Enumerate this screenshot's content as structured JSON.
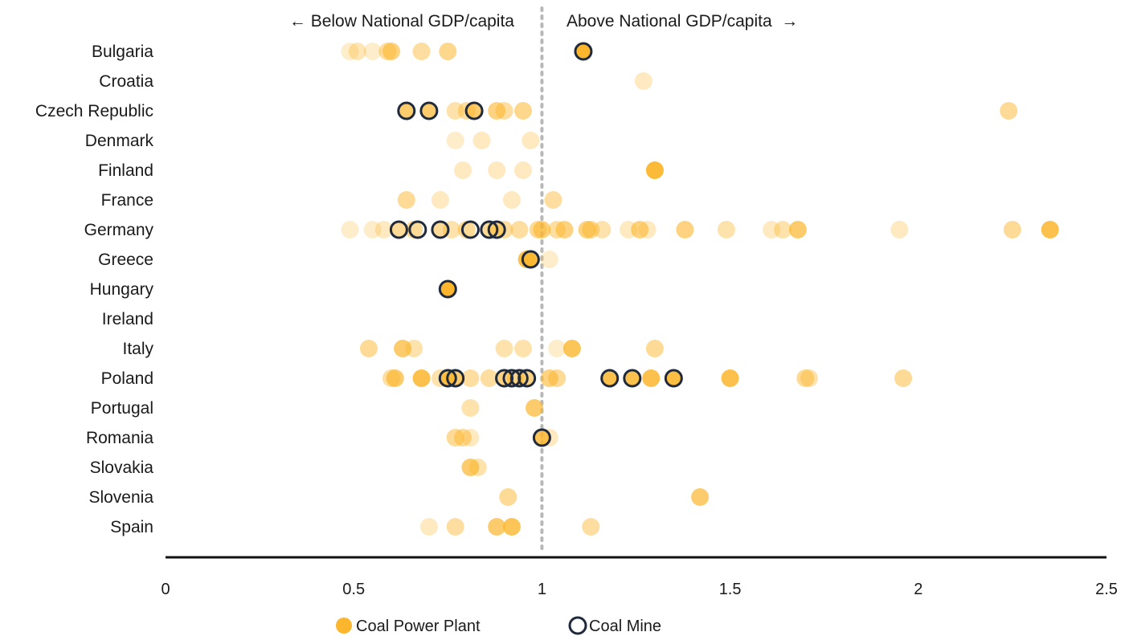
{
  "chart_data": {
    "type": "scatter",
    "title": "",
    "xlabel": "",
    "ylabel": "",
    "xlim": [
      0,
      2.5
    ],
    "x_ticks": [
      "0",
      "0.5",
      "1",
      "1.5",
      "2",
      "2.5"
    ],
    "reference_line_x": 1,
    "annotations": {
      "left": "← Below National GDP/capita",
      "right": "Above National GDP/capita  →"
    },
    "colors": {
      "plant": "#fbb62d",
      "mine_stroke": "#1f2a3c",
      "reference_line": "#b8b8b8",
      "axis": "#111111"
    },
    "legend": {
      "position": "bottom",
      "plant": "Coal Power Plant",
      "mine": "Coal Mine"
    },
    "categories": [
      "Bulgaria",
      "Croatia",
      "Czech Republic",
      "Denmark",
      "Finland",
      "France",
      "Germany",
      "Greece",
      "Hungary",
      "Ireland",
      "Italy",
      "Poland",
      "Portugal",
      "Romania",
      "Slovakia",
      "Slovenia",
      "Spain"
    ],
    "series": [
      {
        "kind": "plant",
        "points": [
          {
            "country": "Bulgaria",
            "x": 0.49,
            "opacity": 0.25
          },
          {
            "country": "Bulgaria",
            "x": 0.51,
            "opacity": 0.35
          },
          {
            "country": "Bulgaria",
            "x": 0.55,
            "opacity": 0.25
          },
          {
            "country": "Bulgaria",
            "x": 0.59,
            "opacity": 0.45
          },
          {
            "country": "Bulgaria",
            "x": 0.6,
            "opacity": 0.6
          },
          {
            "country": "Bulgaria",
            "x": 0.68,
            "opacity": 0.45
          },
          {
            "country": "Bulgaria",
            "x": 0.75,
            "opacity": 0.55
          },
          {
            "country": "Bulgaria",
            "x": 1.11,
            "opacity": 1
          },
          {
            "country": "Croatia",
            "x": 1.27,
            "opacity": 0.3
          },
          {
            "country": "Czech Republic",
            "x": 0.64,
            "opacity": 0.7
          },
          {
            "country": "Czech Republic",
            "x": 0.7,
            "opacity": 0.7
          },
          {
            "country": "Czech Republic",
            "x": 0.77,
            "opacity": 0.4
          },
          {
            "country": "Czech Republic",
            "x": 0.8,
            "opacity": 0.45
          },
          {
            "country": "Czech Republic",
            "x": 0.82,
            "opacity": 0.7
          },
          {
            "country": "Czech Republic",
            "x": 0.88,
            "opacity": 0.6
          },
          {
            "country": "Czech Republic",
            "x": 0.9,
            "opacity": 0.45
          },
          {
            "country": "Czech Republic",
            "x": 0.95,
            "opacity": 0.55
          },
          {
            "country": "Czech Republic",
            "x": 2.24,
            "opacity": 0.5
          },
          {
            "country": "Denmark",
            "x": 0.77,
            "opacity": 0.25
          },
          {
            "country": "Denmark",
            "x": 0.84,
            "opacity": 0.3
          },
          {
            "country": "Denmark",
            "x": 0.97,
            "opacity": 0.3
          },
          {
            "country": "Finland",
            "x": 0.79,
            "opacity": 0.3
          },
          {
            "country": "Finland",
            "x": 0.88,
            "opacity": 0.3
          },
          {
            "country": "Finland",
            "x": 0.95,
            "opacity": 0.3
          },
          {
            "country": "Finland",
            "x": 1.3,
            "opacity": 0.95
          },
          {
            "country": "France",
            "x": 0.64,
            "opacity": 0.5
          },
          {
            "country": "France",
            "x": 0.73,
            "opacity": 0.3
          },
          {
            "country": "France",
            "x": 0.92,
            "opacity": 0.3
          },
          {
            "country": "France",
            "x": 1.03,
            "opacity": 0.45
          },
          {
            "country": "Germany",
            "x": 0.49,
            "opacity": 0.25
          },
          {
            "country": "Germany",
            "x": 0.55,
            "opacity": 0.25
          },
          {
            "country": "Germany",
            "x": 0.58,
            "opacity": 0.3
          },
          {
            "country": "Germany",
            "x": 0.62,
            "opacity": 0.5
          },
          {
            "country": "Germany",
            "x": 0.66,
            "opacity": 0.5
          },
          {
            "country": "Germany",
            "x": 0.73,
            "opacity": 0.5
          },
          {
            "country": "Germany",
            "x": 0.76,
            "opacity": 0.4
          },
          {
            "country": "Germany",
            "x": 0.8,
            "opacity": 0.5
          },
          {
            "country": "Germany",
            "x": 0.86,
            "opacity": 0.5
          },
          {
            "country": "Germany",
            "x": 0.88,
            "opacity": 0.5
          },
          {
            "country": "Germany",
            "x": 0.9,
            "opacity": 0.45
          },
          {
            "country": "Germany",
            "x": 0.94,
            "opacity": 0.45
          },
          {
            "country": "Germany",
            "x": 0.99,
            "opacity": 0.5
          },
          {
            "country": "Germany",
            "x": 1.0,
            "opacity": 0.6
          },
          {
            "country": "Germany",
            "x": 1.04,
            "opacity": 0.45
          },
          {
            "country": "Germany",
            "x": 1.06,
            "opacity": 0.6
          },
          {
            "country": "Germany",
            "x": 1.12,
            "opacity": 0.6
          },
          {
            "country": "Germany",
            "x": 1.13,
            "opacity": 0.5
          },
          {
            "country": "Germany",
            "x": 1.16,
            "opacity": 0.4
          },
          {
            "country": "Germany",
            "x": 1.23,
            "opacity": 0.3
          },
          {
            "country": "Germany",
            "x": 1.26,
            "opacity": 0.6
          },
          {
            "country": "Germany",
            "x": 1.28,
            "opacity": 0.3
          },
          {
            "country": "Germany",
            "x": 1.38,
            "opacity": 0.6
          },
          {
            "country": "Germany",
            "x": 1.49,
            "opacity": 0.4
          },
          {
            "country": "Germany",
            "x": 1.61,
            "opacity": 0.3
          },
          {
            "country": "Germany",
            "x": 1.64,
            "opacity": 0.4
          },
          {
            "country": "Germany",
            "x": 1.68,
            "opacity": 0.7
          },
          {
            "country": "Germany",
            "x": 1.95,
            "opacity": 0.3
          },
          {
            "country": "Germany",
            "x": 2.25,
            "opacity": 0.5
          },
          {
            "country": "Germany",
            "x": 2.35,
            "opacity": 0.85
          },
          {
            "country": "Greece",
            "x": 0.96,
            "opacity": 0.85
          },
          {
            "country": "Greece",
            "x": 0.97,
            "opacity": 0.85
          },
          {
            "country": "Greece",
            "x": 1.02,
            "opacity": 0.25
          },
          {
            "country": "Hungary",
            "x": 0.75,
            "opacity": 1
          },
          {
            "country": "Italy",
            "x": 0.54,
            "opacity": 0.5
          },
          {
            "country": "Italy",
            "x": 0.63,
            "opacity": 0.7
          },
          {
            "country": "Italy",
            "x": 0.66,
            "opacity": 0.4
          },
          {
            "country": "Italy",
            "x": 0.9,
            "opacity": 0.4
          },
          {
            "country": "Italy",
            "x": 0.95,
            "opacity": 0.4
          },
          {
            "country": "Italy",
            "x": 1.04,
            "opacity": 0.25
          },
          {
            "country": "Italy",
            "x": 1.08,
            "opacity": 0.8
          },
          {
            "country": "Italy",
            "x": 1.3,
            "opacity": 0.5
          },
          {
            "country": "Poland",
            "x": 0.6,
            "opacity": 0.45
          },
          {
            "country": "Poland",
            "x": 0.61,
            "opacity": 0.7
          },
          {
            "country": "Poland",
            "x": 0.68,
            "opacity": 0.85
          },
          {
            "country": "Poland",
            "x": 0.73,
            "opacity": 0.4
          },
          {
            "country": "Poland",
            "x": 0.75,
            "opacity": 0.85
          },
          {
            "country": "Poland",
            "x": 0.77,
            "opacity": 0.7
          },
          {
            "country": "Poland",
            "x": 0.81,
            "opacity": 0.45
          },
          {
            "country": "Poland",
            "x": 0.86,
            "opacity": 0.45
          },
          {
            "country": "Poland",
            "x": 0.9,
            "opacity": 0.6
          },
          {
            "country": "Poland",
            "x": 0.93,
            "opacity": 0.6
          },
          {
            "country": "Poland",
            "x": 0.96,
            "opacity": 0.6
          },
          {
            "country": "Poland",
            "x": 1.02,
            "opacity": 0.6
          },
          {
            "country": "Poland",
            "x": 1.04,
            "opacity": 0.5
          },
          {
            "country": "Poland",
            "x": 1.18,
            "opacity": 0.85
          },
          {
            "country": "Poland",
            "x": 1.24,
            "opacity": 0.85
          },
          {
            "country": "Poland",
            "x": 1.29,
            "opacity": 0.85
          },
          {
            "country": "Poland",
            "x": 1.35,
            "opacity": 0.9
          },
          {
            "country": "Poland",
            "x": 1.5,
            "opacity": 0.85
          },
          {
            "country": "Poland",
            "x": 1.7,
            "opacity": 0.5
          },
          {
            "country": "Poland",
            "x": 1.71,
            "opacity": 0.4
          },
          {
            "country": "Poland",
            "x": 1.96,
            "opacity": 0.5
          },
          {
            "country": "Portugal",
            "x": 0.81,
            "opacity": 0.4
          },
          {
            "country": "Portugal",
            "x": 0.98,
            "opacity": 0.7
          },
          {
            "country": "Romania",
            "x": 0.77,
            "opacity": 0.5
          },
          {
            "country": "Romania",
            "x": 0.79,
            "opacity": 0.5
          },
          {
            "country": "Romania",
            "x": 0.81,
            "opacity": 0.3
          },
          {
            "country": "Romania",
            "x": 1.0,
            "opacity": 0.8
          },
          {
            "country": "Romania",
            "x": 1.02,
            "opacity": 0.3
          },
          {
            "country": "Slovakia",
            "x": 0.81,
            "opacity": 0.7
          },
          {
            "country": "Slovakia",
            "x": 0.83,
            "opacity": 0.4
          },
          {
            "country": "Slovenia",
            "x": 0.91,
            "opacity": 0.5
          },
          {
            "country": "Slovenia",
            "x": 1.42,
            "opacity": 0.7
          },
          {
            "country": "Spain",
            "x": 0.7,
            "opacity": 0.3
          },
          {
            "country": "Spain",
            "x": 0.77,
            "opacity": 0.45
          },
          {
            "country": "Spain",
            "x": 0.88,
            "opacity": 0.7
          },
          {
            "country": "Spain",
            "x": 0.92,
            "opacity": 0.8
          },
          {
            "country": "Spain",
            "x": 1.13,
            "opacity": 0.45
          }
        ]
      },
      {
        "kind": "mine",
        "points": [
          {
            "country": "Bulgaria",
            "x": 1.11
          },
          {
            "country": "Czech Republic",
            "x": 0.64
          },
          {
            "country": "Czech Republic",
            "x": 0.7
          },
          {
            "country": "Czech Republic",
            "x": 0.82
          },
          {
            "country": "Germany",
            "x": 0.62
          },
          {
            "country": "Germany",
            "x": 0.67
          },
          {
            "country": "Germany",
            "x": 0.73
          },
          {
            "country": "Germany",
            "x": 0.81
          },
          {
            "country": "Germany",
            "x": 0.86
          },
          {
            "country": "Germany",
            "x": 0.88
          },
          {
            "country": "Greece",
            "x": 0.97
          },
          {
            "country": "Hungary",
            "x": 0.75
          },
          {
            "country": "Poland",
            "x": 0.75
          },
          {
            "country": "Poland",
            "x": 0.77
          },
          {
            "country": "Poland",
            "x": 0.9
          },
          {
            "country": "Poland",
            "x": 0.92
          },
          {
            "country": "Poland",
            "x": 0.94
          },
          {
            "country": "Poland",
            "x": 0.96
          },
          {
            "country": "Poland",
            "x": 1.18
          },
          {
            "country": "Poland",
            "x": 1.24
          },
          {
            "country": "Poland",
            "x": 1.35
          },
          {
            "country": "Romania",
            "x": 1.0
          }
        ]
      }
    ]
  }
}
